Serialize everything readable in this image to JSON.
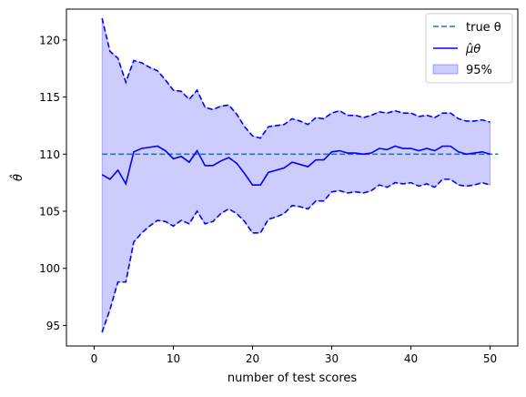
{
  "chart_data": {
    "type": "line",
    "title": "",
    "xlabel": "number of test scores",
    "ylabel": "θ̂",
    "xlim": [
      -3.5,
      53.5
    ],
    "ylim": [
      93.2,
      122.7
    ],
    "xticks": [
      0,
      10,
      20,
      30,
      40,
      50
    ],
    "yticks": [
      95,
      100,
      105,
      110,
      115,
      120
    ],
    "grid": false,
    "legend_position": "top-right",
    "true_theta": 110,
    "true_theta_range": [
      1,
      51
    ],
    "x": [
      1,
      2,
      3,
      4,
      5,
      6,
      7,
      8,
      9,
      10,
      11,
      12,
      13,
      14,
      15,
      16,
      17,
      18,
      19,
      20,
      21,
      22,
      23,
      24,
      25,
      26,
      27,
      28,
      29,
      30,
      31,
      32,
      33,
      34,
      35,
      36,
      37,
      38,
      39,
      40,
      41,
      42,
      43,
      44,
      45,
      46,
      47,
      48,
      49,
      50
    ],
    "series": [
      {
        "name": "μ̂θ",
        "role": "estimate",
        "color": "#0000ff",
        "values": [
          108.2,
          107.8,
          108.6,
          107.4,
          110.2,
          110.5,
          110.6,
          110.7,
          110.3,
          109.6,
          109.8,
          109.3,
          110.3,
          109.0,
          109.0,
          109.4,
          109.7,
          109.2,
          108.3,
          107.3,
          107.3,
          108.4,
          108.6,
          108.8,
          109.3,
          109.1,
          108.9,
          109.5,
          109.5,
          110.2,
          110.3,
          110.1,
          110.1,
          110.0,
          110.1,
          110.5,
          110.4,
          110.7,
          110.5,
          110.5,
          110.3,
          110.5,
          110.3,
          110.7,
          110.7,
          110.2,
          110.0,
          110.1,
          110.2,
          110.0
        ]
      },
      {
        "name": "",
        "role": "upper",
        "color": "#0000ff",
        "values": [
          121.9,
          119.0,
          118.4,
          116.3,
          118.2,
          118.0,
          117.6,
          117.3,
          116.5,
          115.6,
          115.5,
          114.8,
          115.6,
          114.1,
          113.9,
          114.2,
          114.3,
          113.5,
          112.4,
          111.6,
          111.4,
          112.4,
          112.5,
          112.6,
          113.1,
          112.9,
          112.6,
          113.2,
          113.1,
          113.6,
          113.8,
          113.4,
          113.4,
          113.2,
          113.4,
          113.7,
          113.6,
          113.8,
          113.6,
          113.6,
          113.3,
          113.4,
          113.2,
          113.6,
          113.6,
          113.1,
          112.9,
          112.9,
          113.0,
          112.8
        ]
      },
      {
        "name": "",
        "role": "lower",
        "color": "#0000ff",
        "values": [
          94.4,
          96.4,
          98.8,
          98.8,
          102.3,
          103.1,
          103.7,
          104.2,
          104.1,
          103.7,
          104.2,
          103.9,
          105.0,
          103.9,
          104.1,
          104.8,
          105.2,
          104.8,
          104.1,
          103.1,
          103.1,
          104.3,
          104.5,
          104.8,
          105.5,
          105.4,
          105.2,
          105.9,
          105.9,
          106.7,
          106.8,
          106.6,
          106.7,
          106.6,
          106.8,
          107.3,
          107.1,
          107.5,
          107.4,
          107.5,
          107.2,
          107.4,
          107.1,
          107.8,
          107.8,
          107.3,
          107.2,
          107.3,
          107.5,
          107.3
        ]
      }
    ],
    "legend": [
      {
        "label": "true θ",
        "style": "dashed-line",
        "color": "#1f77b4"
      },
      {
        "label": "μ̂θ",
        "style": "solid-line",
        "color": "#0000ff"
      },
      {
        "label": "95%",
        "style": "patch",
        "color": "#0000ff"
      }
    ],
    "band_fill_opacity": 0.2
  }
}
